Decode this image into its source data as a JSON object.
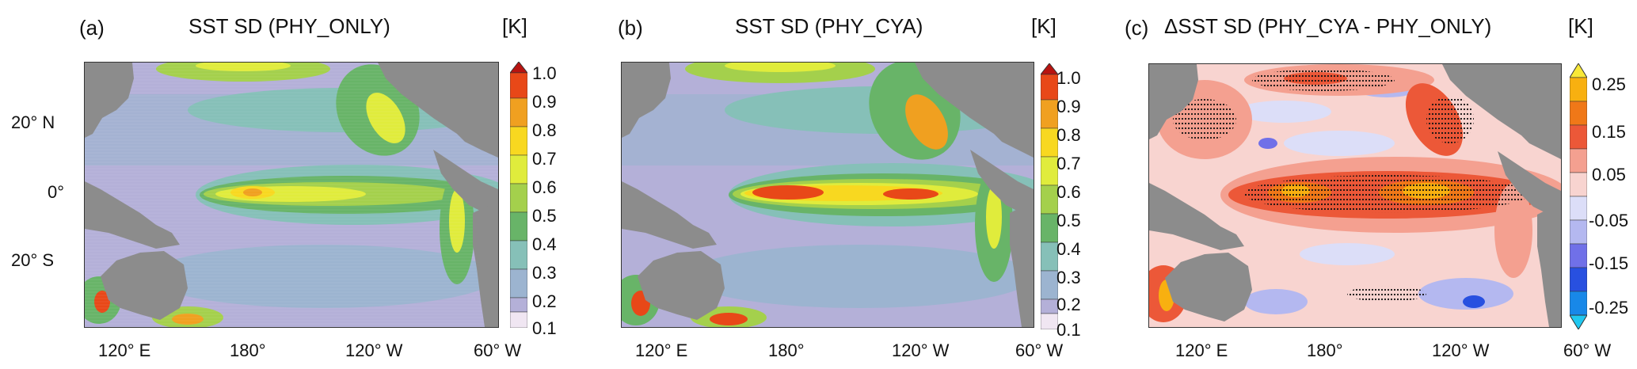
{
  "panels": [
    {
      "letter": "(a)",
      "title": "SST SD (PHY_ONLY)",
      "unit": "[K]",
      "colorbar_labels": [
        "1.0",
        "0.9",
        "0.8",
        "0.7",
        "0.6",
        "0.5",
        "0.4",
        "0.3",
        "0.2",
        "0.1"
      ],
      "lat_labels": [
        "20°  N",
        "0°",
        "20°  S"
      ],
      "lon_labels": [
        "120°  E",
        "180°",
        "120°  W",
        "60°  W"
      ]
    },
    {
      "letter": "(b)",
      "title": "SST SD  (PHY_CYA)",
      "unit": "[K]",
      "colorbar_labels": [
        "1.0",
        "0.9",
        "0.8",
        "0.7",
        "0.6",
        "0.5",
        "0.4",
        "0.3",
        "0.2",
        "0.1"
      ],
      "lon_labels": [
        "120°  E",
        "180°",
        "120°  W",
        "60°  W"
      ]
    },
    {
      "letter": "(c)",
      "title": "ΔSST SD    (PHY_CYA - PHY_ONLY)",
      "unit": "[K]",
      "colorbar_labels": [
        "0.25",
        "0.15",
        "0.05",
        "-0.05",
        "-0.15",
        "-0.25"
      ],
      "lon_labels": [
        "120°  E",
        "180°",
        "120°  W",
        "60°  W"
      ]
    }
  ],
  "colors": {
    "land": "#8c8c8c",
    "sd_scale": [
      "#f0e6f2",
      "#d4c6e2",
      "#b4b0d8",
      "#9cb4d0",
      "#86c0b8",
      "#68b468",
      "#a4d04c",
      "#e0ec3c",
      "#f8d820",
      "#f0a020",
      "#e84818",
      "#b81410"
    ],
    "diff_scale": [
      "#20c8f0",
      "#1888e8",
      "#2850e0",
      "#7070e8",
      "#b4b8f0",
      "#dcdef8",
      "#f8d4d0",
      "#f4a090",
      "#ec5838",
      "#f07818",
      "#f8b010",
      "#f8e838"
    ]
  }
}
